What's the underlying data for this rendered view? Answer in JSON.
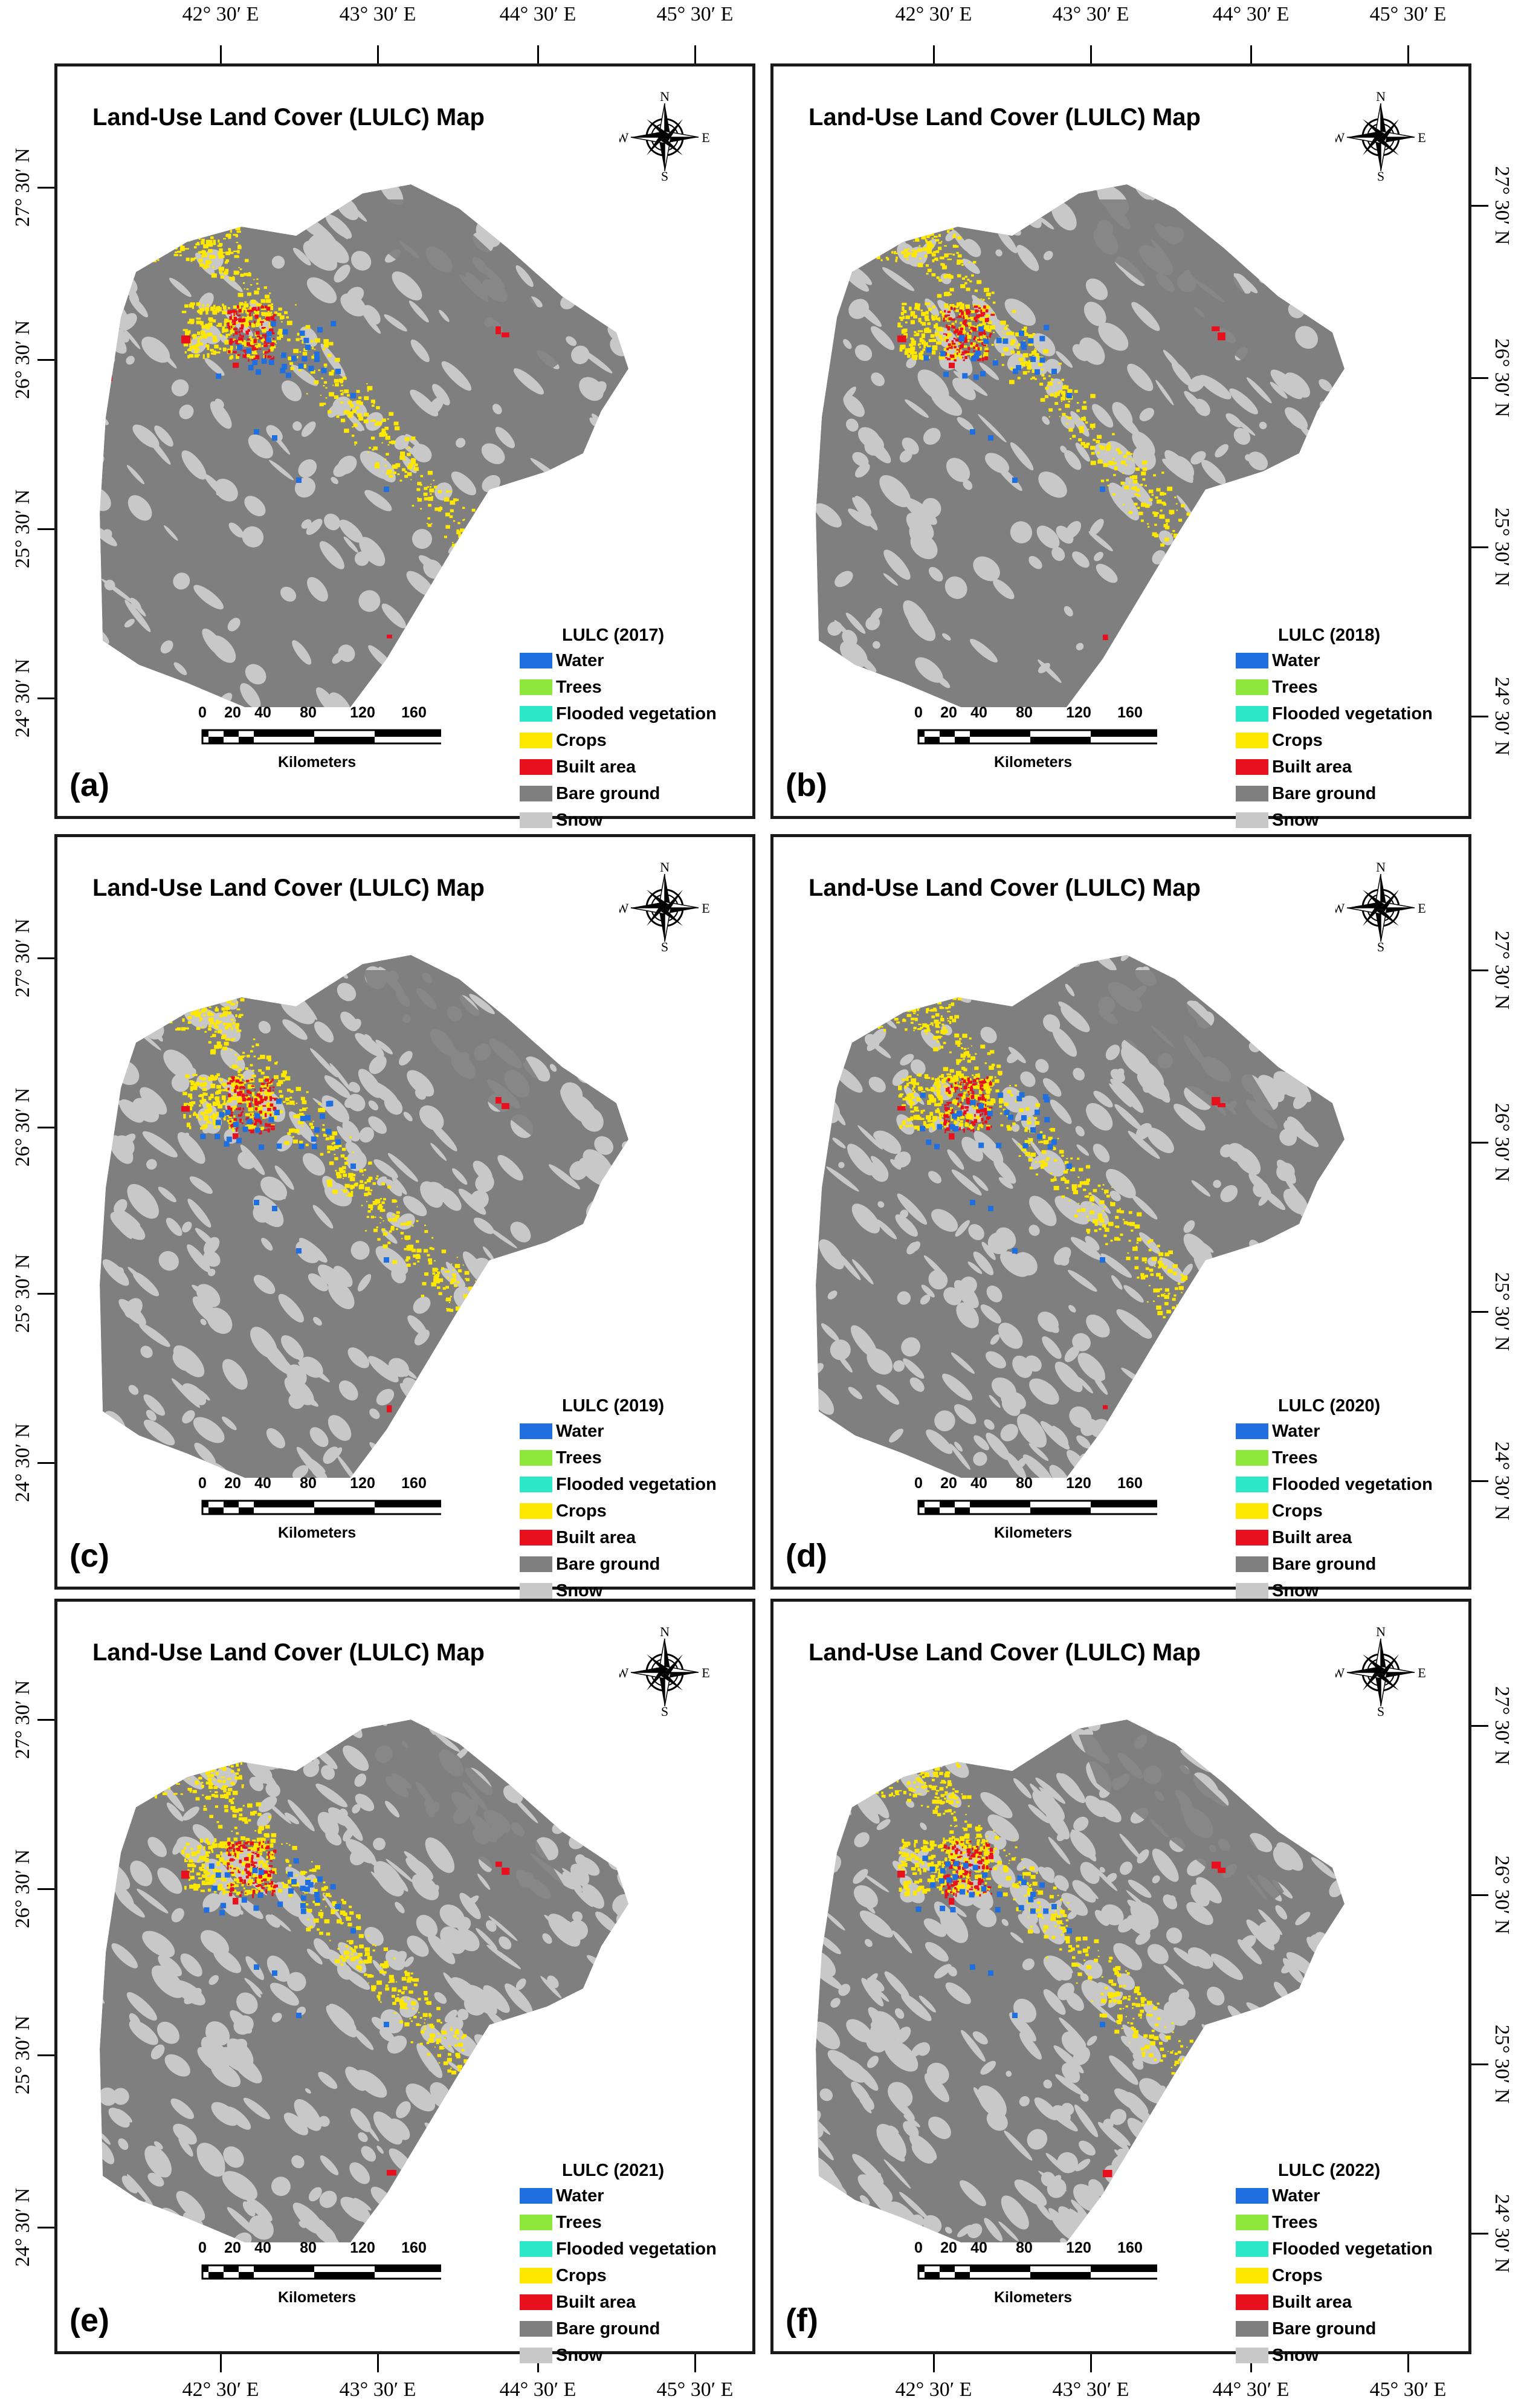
{
  "coords": {
    "lon_labels": [
      "42° 30′ E",
      "43° 30′ E",
      "44° 30′ E",
      "45° 30′ E"
    ],
    "lat_labels": [
      "27° 30′ N",
      "26° 30′ N",
      "25° 30′ N",
      "24° 30′ N"
    ]
  },
  "map_title": "Land-Use Land Cover (LULC) Map",
  "compass": {
    "n": "N",
    "s": "S",
    "e": "E",
    "w": "W"
  },
  "legend_classes": [
    {
      "label": "Water",
      "color": "#1f6fe0"
    },
    {
      "label": "Trees",
      "color": "#8ee83b"
    },
    {
      "label": "Flooded vegetation",
      "color": "#2de8c8"
    },
    {
      "label": "Crops",
      "color": "#ffe800"
    },
    {
      "label": "Built area",
      "color": "#e8101c"
    },
    {
      "label": "Bare ground",
      "color": "#7f7f7f"
    },
    {
      "label": "Snow",
      "color": "#c8c8c8"
    }
  ],
  "scale": {
    "ticks": [
      "0",
      "20",
      "40",
      "80",
      "120",
      "160"
    ],
    "unit": "Kilometers"
  },
  "panels": [
    {
      "label": "(a)",
      "legend_title": "LULC (2017)"
    },
    {
      "label": "(b)",
      "legend_title": "LULC (2018)"
    },
    {
      "label": "(c)",
      "legend_title": "LULC (2019)"
    },
    {
      "label": "(d)",
      "legend_title": "LULC (2020)"
    },
    {
      "label": "(e)",
      "legend_title": "LULC (2021)"
    },
    {
      "label": "(f)",
      "legend_title": "LULC (2022)"
    }
  ]
}
